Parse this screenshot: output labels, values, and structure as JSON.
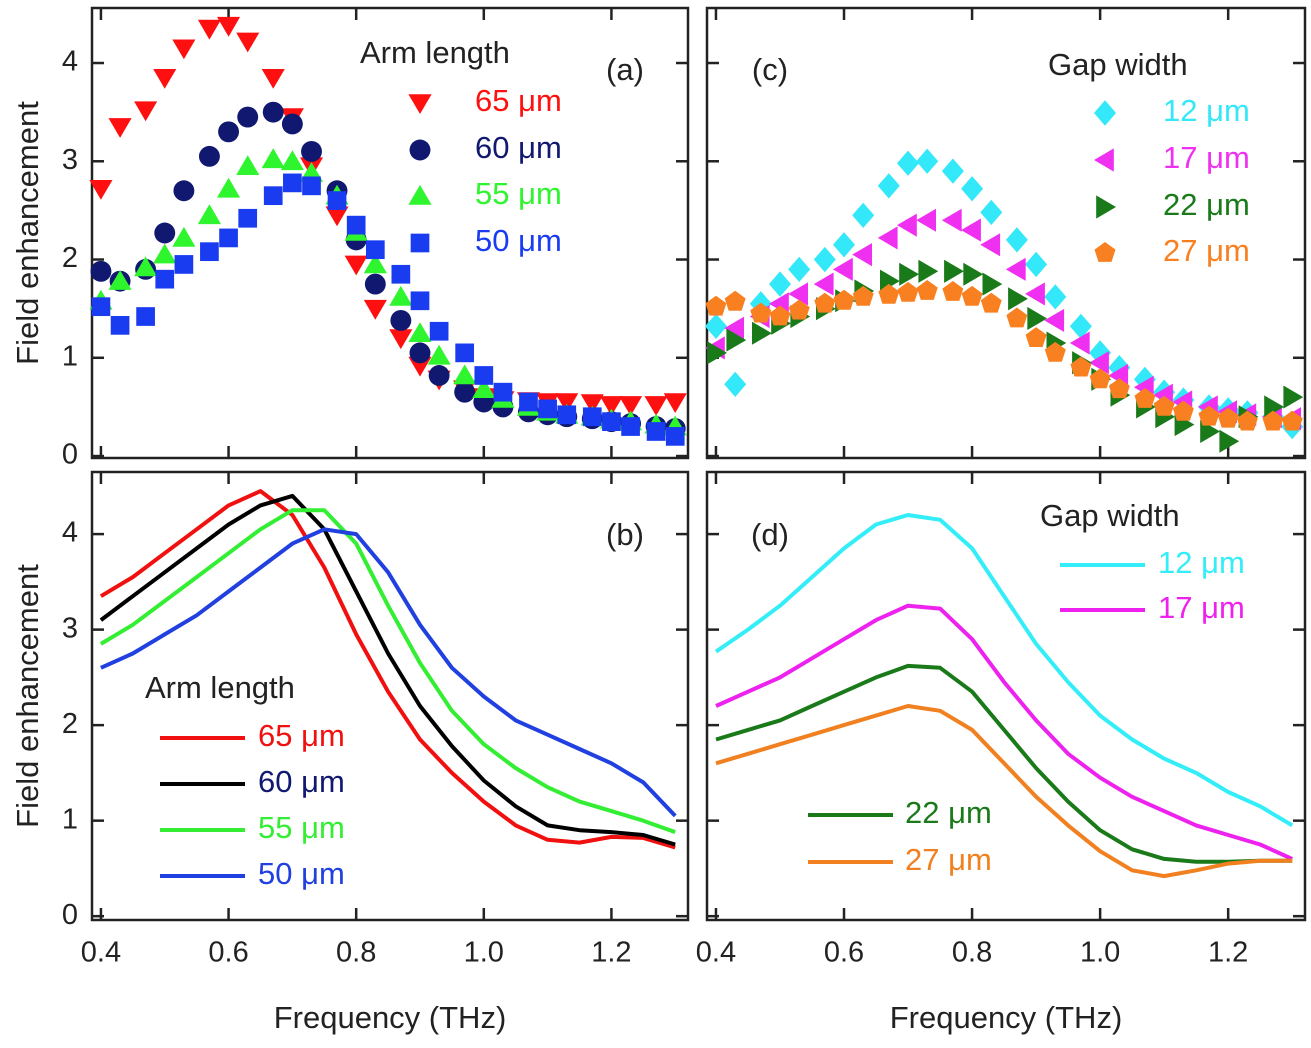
{
  "chart_data": [
    {
      "type": "scatter",
      "panel_label": "(a)",
      "legend_title": "Arm length",
      "ylabel": "Field enhancement",
      "xlim": [
        0.386,
        1.32
      ],
      "ylim": [
        -0.02,
        4.56
      ],
      "xticks": [
        0.4,
        0.6,
        0.8,
        {
          "value": 1,
          "label": "1.0"
        },
        1.2
      ],
      "yticks": [
        0,
        1,
        2,
        3,
        4
      ],
      "xtick_labels": false,
      "ytick_labels": true,
      "x": [
        0.4,
        0.43,
        0.47,
        0.5,
        0.53,
        0.57,
        0.6,
        0.63,
        0.67,
        0.7,
        0.73,
        0.77,
        0.8,
        0.83,
        0.87,
        0.9,
        0.93,
        0.97,
        1.0,
        1.03,
        1.07,
        1.1,
        1.13,
        1.17,
        1.2,
        1.23,
        1.27,
        1.3
      ],
      "series": [
        {
          "name": "65 μm",
          "color": "#ff1010",
          "marker": "triangle-down",
          "values": [
            2.72,
            3.35,
            3.52,
            3.85,
            4.15,
            4.35,
            4.38,
            4.22,
            3.85,
            3.45,
            2.95,
            2.45,
            1.95,
            1.5,
            1.2,
            0.92,
            0.78,
            0.68,
            0.6,
            0.57,
            0.56,
            0.55,
            0.55,
            0.54,
            0.52,
            0.52,
            0.52,
            0.55
          ]
        },
        {
          "name": "60 μm",
          "color": "#101870",
          "marker": "circle",
          "values": [
            1.88,
            1.78,
            1.9,
            2.27,
            2.7,
            3.05,
            3.3,
            3.45,
            3.5,
            3.38,
            3.1,
            2.7,
            2.2,
            1.75,
            1.38,
            1.05,
            0.82,
            0.65,
            0.55,
            0.5,
            0.45,
            0.42,
            0.4,
            0.38,
            0.35,
            0.33,
            0.3,
            0.28
          ]
        },
        {
          "name": "55 μm",
          "color": "#2ef52e",
          "marker": "triangle-up",
          "values": [
            1.58,
            1.78,
            1.92,
            2.05,
            2.22,
            2.45,
            2.72,
            2.95,
            3.02,
            3.0,
            2.88,
            2.65,
            2.28,
            1.95,
            1.62,
            1.25,
            1.02,
            0.82,
            0.68,
            0.58,
            0.5,
            0.45,
            0.42,
            0.4,
            0.37,
            0.35,
            0.32,
            0.3
          ]
        },
        {
          "name": "50 μm",
          "color": "#1a3cf0",
          "marker": "square",
          "values": [
            1.52,
            1.33,
            1.42,
            1.8,
            1.95,
            2.08,
            2.22,
            2.42,
            2.65,
            2.78,
            2.75,
            2.6,
            2.35,
            2.1,
            1.85,
            1.58,
            1.27,
            1.05,
            0.82,
            0.65,
            0.55,
            0.48,
            0.42,
            0.4,
            0.35,
            0.3,
            0.25,
            0.2
          ]
        }
      ]
    },
    {
      "type": "line",
      "panel_label": "(b)",
      "legend_title": "Arm length",
      "ylabel": "Field enhancement",
      "xlabel": "Frequency (THz)",
      "xlim": [
        0.386,
        1.32
      ],
      "ylim": [
        -0.04,
        4.65
      ],
      "xticks": [
        0.4,
        0.6,
        0.8,
        {
          "value": 1,
          "label": "1.0"
        },
        1.2
      ],
      "yticks": [
        0,
        1,
        2,
        3,
        4
      ],
      "xtick_labels": true,
      "ytick_labels": true,
      "x": [
        0.4,
        0.45,
        0.5,
        0.55,
        0.6,
        0.65,
        0.7,
        0.75,
        0.8,
        0.85,
        0.9,
        0.95,
        1.0,
        1.05,
        1.1,
        1.15,
        1.2,
        1.25,
        1.3
      ],
      "series": [
        {
          "name": "65 μm",
          "color": "#f01010",
          "values": [
            3.35,
            3.55,
            3.8,
            4.05,
            4.3,
            4.45,
            4.2,
            3.65,
            2.95,
            2.35,
            1.85,
            1.5,
            1.2,
            0.95,
            0.8,
            0.77,
            0.83,
            0.82,
            0.72
          ]
        },
        {
          "name": "60 μm",
          "color": "#000000",
          "legend_text_color": "#101870",
          "values": [
            3.1,
            3.35,
            3.6,
            3.85,
            4.1,
            4.3,
            4.4,
            4.05,
            3.4,
            2.75,
            2.2,
            1.78,
            1.42,
            1.15,
            0.95,
            0.9,
            0.88,
            0.85,
            0.75
          ]
        },
        {
          "name": "55 μm",
          "color": "#33ee33",
          "values": [
            2.85,
            3.05,
            3.3,
            3.55,
            3.8,
            4.05,
            4.25,
            4.25,
            3.9,
            3.25,
            2.65,
            2.15,
            1.8,
            1.55,
            1.35,
            1.2,
            1.1,
            1.0,
            0.88
          ]
        },
        {
          "name": "50 μm",
          "color": "#2040e0",
          "values": [
            2.6,
            2.75,
            2.95,
            3.15,
            3.4,
            3.65,
            3.9,
            4.05,
            4.0,
            3.6,
            3.05,
            2.6,
            2.3,
            2.05,
            1.9,
            1.75,
            1.6,
            1.4,
            1.05
          ]
        }
      ]
    },
    {
      "type": "scatter",
      "panel_label": "(c)",
      "legend_title": "Gap width",
      "xlim": [
        0.386,
        1.32
      ],
      "ylim": [
        -0.02,
        4.56
      ],
      "xticks": [
        0.4,
        0.6,
        0.8,
        {
          "value": 1,
          "label": "1.0"
        },
        1.2
      ],
      "yticks": [
        0,
        1,
        2,
        3,
        4
      ],
      "xtick_labels": false,
      "ytick_labels": false,
      "x": [
        0.4,
        0.43,
        0.47,
        0.5,
        0.53,
        0.57,
        0.6,
        0.63,
        0.67,
        0.7,
        0.73,
        0.77,
        0.8,
        0.83,
        0.87,
        0.9,
        0.93,
        0.97,
        1.0,
        1.03,
        1.07,
        1.1,
        1.13,
        1.17,
        1.2,
        1.23,
        1.27,
        1.3
      ],
      "series": [
        {
          "name": "12 μm",
          "color": "#33e8f8",
          "marker": "diamond",
          "values": [
            1.32,
            0.73,
            1.55,
            1.75,
            1.9,
            2.0,
            2.15,
            2.45,
            2.75,
            2.98,
            3.0,
            2.9,
            2.72,
            2.48,
            2.2,
            1.95,
            1.62,
            1.32,
            1.05,
            0.9,
            0.78,
            0.65,
            0.57,
            0.5,
            0.47,
            0.44,
            0.4,
            0.3
          ]
        },
        {
          "name": "17 μm",
          "color": "#f030f0",
          "marker": "triangle-left",
          "values": [
            1.1,
            1.3,
            1.42,
            1.55,
            1.65,
            1.75,
            1.9,
            2.05,
            2.22,
            2.35,
            2.4,
            2.4,
            2.3,
            2.15,
            1.9,
            1.65,
            1.38,
            1.15,
            0.95,
            0.82,
            0.7,
            0.62,
            0.55,
            0.5,
            0.45,
            0.42,
            0.4,
            0.38
          ]
        },
        {
          "name": "22 μm",
          "color": "#1a7a1a",
          "marker": "triangle-right",
          "values": [
            1.05,
            1.18,
            1.25,
            1.35,
            1.42,
            1.5,
            1.58,
            1.68,
            1.78,
            1.85,
            1.88,
            1.88,
            1.85,
            1.75,
            1.6,
            1.4,
            1.15,
            0.95,
            0.78,
            0.62,
            0.5,
            0.4,
            0.32,
            0.25,
            0.15,
            0.4,
            0.5,
            0.6
          ]
        },
        {
          "name": "27 μm",
          "color": "#f88020",
          "marker": "pentagon",
          "values": [
            1.52,
            1.57,
            1.45,
            1.42,
            1.48,
            1.55,
            1.58,
            1.62,
            1.64,
            1.66,
            1.68,
            1.67,
            1.62,
            1.55,
            1.4,
            1.2,
            1.05,
            0.9,
            0.78,
            0.68,
            0.58,
            0.5,
            0.45,
            0.4,
            0.38,
            0.35,
            0.35,
            0.35
          ]
        }
      ]
    },
    {
      "type": "line",
      "panel_label": "(d)",
      "legend_title": "Gap width",
      "xlabel": "Frequency (THz)",
      "xlim": [
        0.386,
        1.32
      ],
      "ylim": [
        -0.04,
        4.65
      ],
      "xticks": [
        0.4,
        0.6,
        0.8,
        {
          "value": 1,
          "label": "1.0"
        },
        1.2
      ],
      "yticks": [
        0,
        1,
        2,
        3,
        4
      ],
      "xtick_labels": true,
      "ytick_labels": false,
      "x": [
        0.4,
        0.45,
        0.5,
        0.55,
        0.6,
        0.65,
        0.7,
        0.75,
        0.8,
        0.85,
        0.9,
        0.95,
        1.0,
        1.05,
        1.1,
        1.15,
        1.2,
        1.25,
        1.3
      ],
      "series": [
        {
          "name": "12 μm",
          "color": "#33eef8",
          "values": [
            2.77,
            3.0,
            3.25,
            3.55,
            3.85,
            4.1,
            4.2,
            4.15,
            3.85,
            3.35,
            2.85,
            2.45,
            2.1,
            1.85,
            1.65,
            1.5,
            1.3,
            1.15,
            0.95
          ]
        },
        {
          "name": "17 μm",
          "color": "#ee22ee",
          "values": [
            2.2,
            2.35,
            2.5,
            2.7,
            2.9,
            3.1,
            3.25,
            3.22,
            2.9,
            2.45,
            2.05,
            1.7,
            1.45,
            1.25,
            1.1,
            0.95,
            0.85,
            0.75,
            0.6
          ]
        },
        {
          "name": "22 μm",
          "color": "#1a7a1a",
          "values": [
            1.85,
            1.95,
            2.05,
            2.2,
            2.35,
            2.5,
            2.62,
            2.6,
            2.35,
            1.95,
            1.55,
            1.2,
            0.9,
            0.7,
            0.6,
            0.57,
            0.57,
            0.58,
            0.58
          ]
        },
        {
          "name": "27 μm",
          "color": "#f08020",
          "values": [
            1.6,
            1.7,
            1.8,
            1.9,
            2.0,
            2.1,
            2.2,
            2.15,
            1.95,
            1.6,
            1.25,
            0.95,
            0.68,
            0.48,
            0.42,
            0.48,
            0.55,
            0.58,
            0.58
          ]
        }
      ]
    }
  ]
}
